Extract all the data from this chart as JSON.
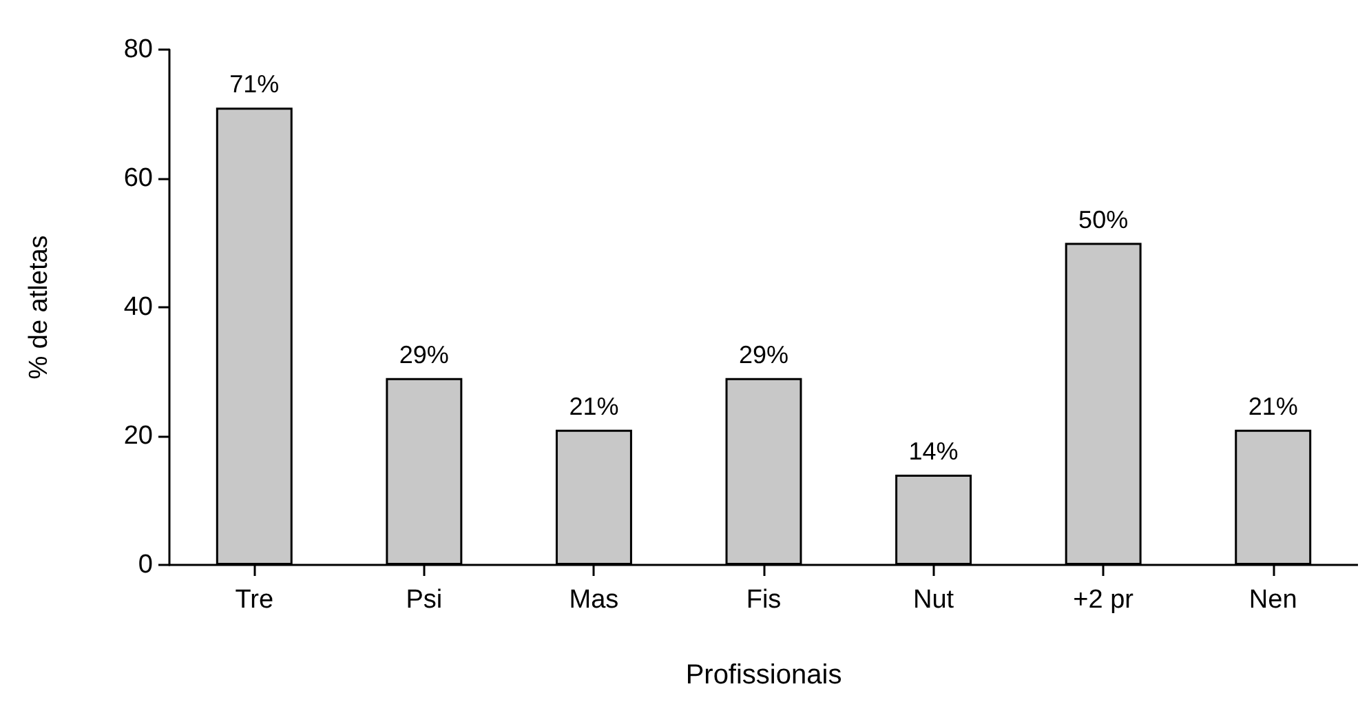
{
  "chart_data": {
    "type": "bar",
    "xlabel": "Profissionais",
    "ylabel": "% de atletas",
    "categories": [
      "Tre",
      "Psi",
      "Mas",
      "Fis",
      "Nut",
      "+2 pr",
      "Nen"
    ],
    "values": [
      71,
      29,
      21,
      29,
      14,
      50,
      21
    ],
    "value_labels": [
      "71%",
      "29%",
      "21%",
      "29%",
      "14%",
      "50%",
      "21%"
    ],
    "color": "#c8c8c8",
    "ylim": [
      0,
      80
    ],
    "yticks": [
      0,
      20,
      40,
      60,
      80
    ],
    "grid": false
  }
}
